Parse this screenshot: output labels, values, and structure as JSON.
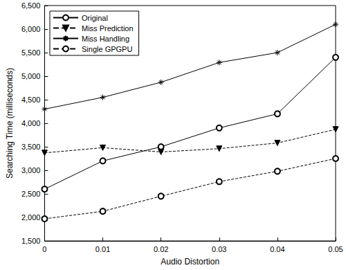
{
  "chart_data": {
    "type": "line",
    "x_label": "Audio Distortion",
    "y_label": "Searching Time (milliseconds)",
    "x": [
      0,
      0.01,
      0.02,
      0.03,
      0.04,
      0.05
    ],
    "xlim": [
      0,
      0.05
    ],
    "xticks": [
      0,
      0.01,
      0.02,
      0.03,
      0.04,
      0.05
    ],
    "ylim": [
      1500,
      6500
    ],
    "yticks": [
      1500,
      2000,
      2500,
      3000,
      3500,
      4000,
      4500,
      5000,
      5500,
      6000,
      6500
    ],
    "grid": false,
    "legend": "upper left",
    "series": [
      {
        "name": "Original",
        "color": "#000000",
        "marker": "circle",
        "line_style": "solid",
        "values": [
          2600,
          3200,
          3500,
          3900,
          4200,
          5400
        ]
      },
      {
        "name": "Miss Prediction",
        "color": "#000000",
        "marker": "triangle_down",
        "line_style": "dashed",
        "values": [
          3370,
          3480,
          3390,
          3460,
          3580,
          3870
        ]
      },
      {
        "name": "Miss Handling",
        "color": "#000000",
        "marker": "asterisk",
        "line_style": "solid",
        "values": [
          4300,
          4550,
          4870,
          5290,
          5500,
          6100
        ]
      },
      {
        "name": "Single GPGPU",
        "color": "#000000",
        "marker": "circle",
        "line_style": "dashed",
        "values": [
          1970,
          2130,
          2450,
          2760,
          2980,
          3250
        ]
      }
    ]
  }
}
